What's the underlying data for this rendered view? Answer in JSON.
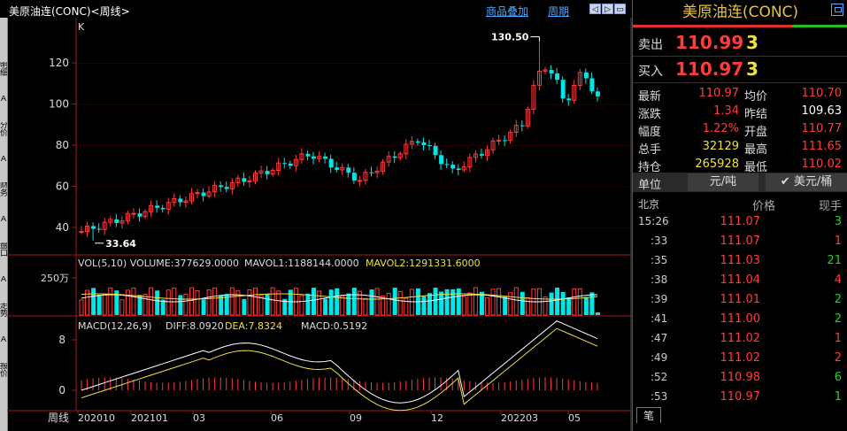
{
  "header": {
    "title": "美原油连(CONC)<周线>",
    "overlay_link": "商品叠加",
    "period_link": "周期"
  },
  "left_rail": [
    "明细",
    "A",
    "分价",
    "A",
    "财务",
    "A",
    "盘口",
    "A",
    "走势",
    "A",
    "报价"
  ],
  "chart": {
    "kline_label": "K",
    "price_axis": [
      "120",
      "100",
      "80",
      "60",
      "40"
    ],
    "high_annotation": "130.50",
    "low_annotation": "33.64",
    "vol_indicator": "VOL(5,10) VOLUME:377629.0000",
    "vol_ma1": "MAVOL1:1188144.0000",
    "vol_ma2": "MAVOL2:1291331.6000",
    "vol_axis": "250万",
    "macd_label": "MACD(12,26,9)",
    "macd_diff": "DIFF:8.0920",
    "macd_dea": "DEA:7.8324",
    "macd_val": "MACD:0.5192",
    "macd_axis": [
      "8",
      "0"
    ],
    "period_name": "周线",
    "x_labels": [
      "202010",
      "202101",
      "03",
      "06",
      "09",
      "12",
      "202203",
      "05"
    ],
    "colors": {
      "up": "#ff3b3b",
      "down": "#00e5e5",
      "ma1": "#ffffff",
      "ma2": "#f0e040"
    }
  },
  "quote": {
    "name": "美原油连(CONC)",
    "sell_label": "卖出",
    "sell_price": "110.99",
    "sell_vol": "3",
    "buy_label": "买入",
    "buy_price": "110.97",
    "buy_vol": "3",
    "stats": [
      {
        "l1": "最新",
        "v1": "110.97",
        "c1": "red",
        "l2": "均价",
        "v2": "110.70",
        "c2": "red"
      },
      {
        "l1": "涨跌",
        "v1": "1.34",
        "c1": "red",
        "l2": "昨结",
        "v2": "109.63",
        "c2": "white"
      },
      {
        "l1": "幅度",
        "v1": "1.22%",
        "c1": "red",
        "l2": "开盘",
        "v2": "110.77",
        "c2": "red"
      },
      {
        "l1": "总手",
        "v1": "32129",
        "c1": "yellow",
        "l2": "最高",
        "v2": "111.65",
        "c2": "red"
      },
      {
        "l1": "持仓",
        "v1": "265928",
        "c1": "yellow",
        "l2": "最低",
        "v2": "110.02",
        "c2": "red"
      }
    ],
    "unit_label": "单位",
    "unit_rmb": "元/吨",
    "unit_usd": "✔ 美元/桶",
    "tick_header": {
      "place": "北京",
      "price": "价格",
      "vol": "现手"
    },
    "ticks": [
      {
        "t": "15:26",
        "p": "111.07",
        "v": "3",
        "c": "green"
      },
      {
        "t": ":33",
        "p": "111.07",
        "v": "1",
        "c": "red"
      },
      {
        "t": ":35",
        "p": "111.03",
        "v": "21",
        "c": "green"
      },
      {
        "t": ":38",
        "p": "111.04",
        "v": "4",
        "c": "red"
      },
      {
        "t": ":39",
        "p": "111.01",
        "v": "2",
        "c": "green"
      },
      {
        "t": ":41",
        "p": "111.00",
        "v": "2",
        "c": "green"
      },
      {
        "t": ":47",
        "p": "111.02",
        "v": "1",
        "c": "red"
      },
      {
        "t": ":49",
        "p": "111.02",
        "v": "2",
        "c": "red"
      },
      {
        "t": ":52",
        "p": "110.98",
        "v": "6",
        "c": "green"
      },
      {
        "t": ":53",
        "p": "110.97",
        "v": "1",
        "c": "green"
      }
    ],
    "pen_tab": "笔"
  }
}
